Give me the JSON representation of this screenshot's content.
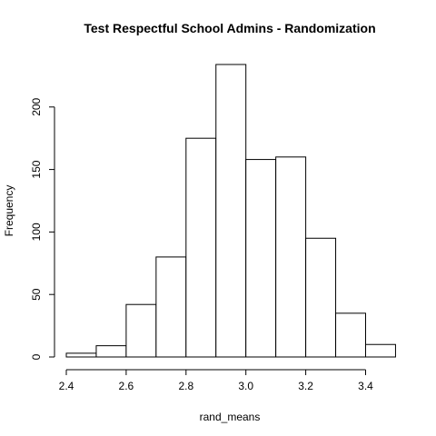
{
  "chart_data": {
    "type": "bar",
    "title": "Test Respectful School Admins - Randomization",
    "xlabel": "rand_means",
    "ylabel": "Frequency",
    "bins": [
      {
        "x0": 2.4,
        "x1": 2.5,
        "count": 3
      },
      {
        "x0": 2.5,
        "x1": 2.6,
        "count": 9
      },
      {
        "x0": 2.6,
        "x1": 2.7,
        "count": 42
      },
      {
        "x0": 2.7,
        "x1": 2.8,
        "count": 80
      },
      {
        "x0": 2.8,
        "x1": 2.9,
        "count": 175
      },
      {
        "x0": 2.9,
        "x1": 3.0,
        "count": 234
      },
      {
        "x0": 3.0,
        "x1": 3.1,
        "count": 158
      },
      {
        "x0": 3.1,
        "x1": 3.2,
        "count": 160
      },
      {
        "x0": 3.2,
        "x1": 3.3,
        "count": 95
      },
      {
        "x0": 3.3,
        "x1": 3.4,
        "count": 35
      },
      {
        "x0": 3.4,
        "x1": 3.5,
        "count": 10
      }
    ],
    "xticks": [
      "2.4",
      "2.6",
      "2.8",
      "3.0",
      "3.2",
      "3.4"
    ],
    "yticks": [
      "0",
      "50",
      "100",
      "150",
      "200"
    ],
    "xlim": [
      2.4,
      3.5
    ],
    "ylim": [
      0,
      234
    ],
    "grid": false,
    "legend": "none"
  }
}
